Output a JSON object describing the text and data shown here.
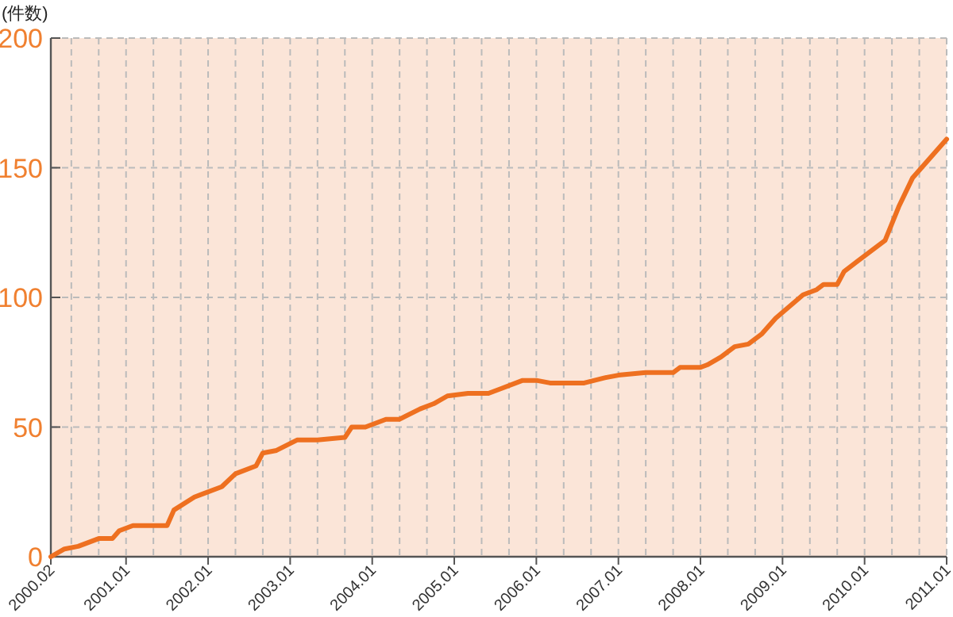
{
  "chart_data": {
    "type": "line",
    "ylabel": "(件数)",
    "x": [
      "2000-02",
      "2000-04",
      "2000-06",
      "2000-09",
      "2000-11",
      "2000-12",
      "2001-02",
      "2001-07",
      "2001-08",
      "2001-11",
      "2002-03",
      "2002-05",
      "2002-08",
      "2002-09",
      "2002-11",
      "2003-02",
      "2003-05",
      "2003-09",
      "2003-10",
      "2003-12",
      "2004-03",
      "2004-05",
      "2004-08",
      "2004-10",
      "2004-12",
      "2005-03",
      "2005-06",
      "2005-08",
      "2005-11",
      "2006-01",
      "2006-03",
      "2006-08",
      "2006-11",
      "2007-01",
      "2007-05",
      "2007-09",
      "2007-10",
      "2008-01",
      "2008-02",
      "2008-04",
      "2008-06",
      "2008-08",
      "2008-10",
      "2008-12",
      "2009-04",
      "2009-06",
      "2009-07",
      "2009-09",
      "2009-10",
      "2009-12",
      "2010-02",
      "2010-04",
      "2010-06",
      "2010-08",
      "2011-01"
    ],
    "series": [
      {
        "color": "#ee7020",
        "values": [
          0,
          3,
          4,
          7,
          7,
          10,
          12,
          12,
          18,
          23,
          27,
          32,
          35,
          40,
          41,
          45,
          45,
          46,
          50,
          50,
          53,
          53,
          57,
          59,
          62,
          63,
          63,
          65,
          68,
          68,
          67,
          67,
          69,
          70,
          71,
          71,
          73,
          73,
          74,
          77,
          81,
          82,
          86,
          92,
          101,
          103,
          105,
          105,
          110,
          114,
          118,
          122,
          135,
          146,
          161
        ]
      }
    ],
    "xlim": [
      "2000-02",
      "2011-01"
    ],
    "xticks": [
      {
        "value": "2000-02",
        "label": "2000.02"
      },
      {
        "value": "2000-05",
        "label": null
      },
      {
        "value": "2000-09",
        "label": null
      },
      {
        "value": "2001-01",
        "label": "2001.01"
      },
      {
        "value": "2001-05",
        "label": null
      },
      {
        "value": "2001-09",
        "label": null
      },
      {
        "value": "2002-01",
        "label": "2002.01"
      },
      {
        "value": "2002-05",
        "label": null
      },
      {
        "value": "2002-09",
        "label": null
      },
      {
        "value": "2003-01",
        "label": "2003.01"
      },
      {
        "value": "2003-05",
        "label": null
      },
      {
        "value": "2003-09",
        "label": null
      },
      {
        "value": "2004-01",
        "label": "2004.01"
      },
      {
        "value": "2004-05",
        "label": null
      },
      {
        "value": "2004-09",
        "label": null
      },
      {
        "value": "2005-01",
        "label": "2005.01"
      },
      {
        "value": "2005-05",
        "label": null
      },
      {
        "value": "2005-09",
        "label": null
      },
      {
        "value": "2006-01",
        "label": "2006.01"
      },
      {
        "value": "2006-05",
        "label": null
      },
      {
        "value": "2006-09",
        "label": null
      },
      {
        "value": "2007-01",
        "label": "2007.01"
      },
      {
        "value": "2007-05",
        "label": null
      },
      {
        "value": "2007-09",
        "label": null
      },
      {
        "value": "2008-01",
        "label": "2008.01"
      },
      {
        "value": "2008-05",
        "label": null
      },
      {
        "value": "2008-09",
        "label": null
      },
      {
        "value": "2009-01",
        "label": "2009.01"
      },
      {
        "value": "2009-05",
        "label": null
      },
      {
        "value": "2009-09",
        "label": null
      },
      {
        "value": "2010-01",
        "label": "2010.01"
      },
      {
        "value": "2010-05",
        "label": null
      },
      {
        "value": "2010-09",
        "label": null
      },
      {
        "value": "2011-01",
        "label": "2011.01"
      }
    ],
    "ylim": [
      0,
      200
    ],
    "yticks": [
      0,
      50,
      100,
      150,
      200
    ],
    "grid": true,
    "line_style": "solid"
  }
}
